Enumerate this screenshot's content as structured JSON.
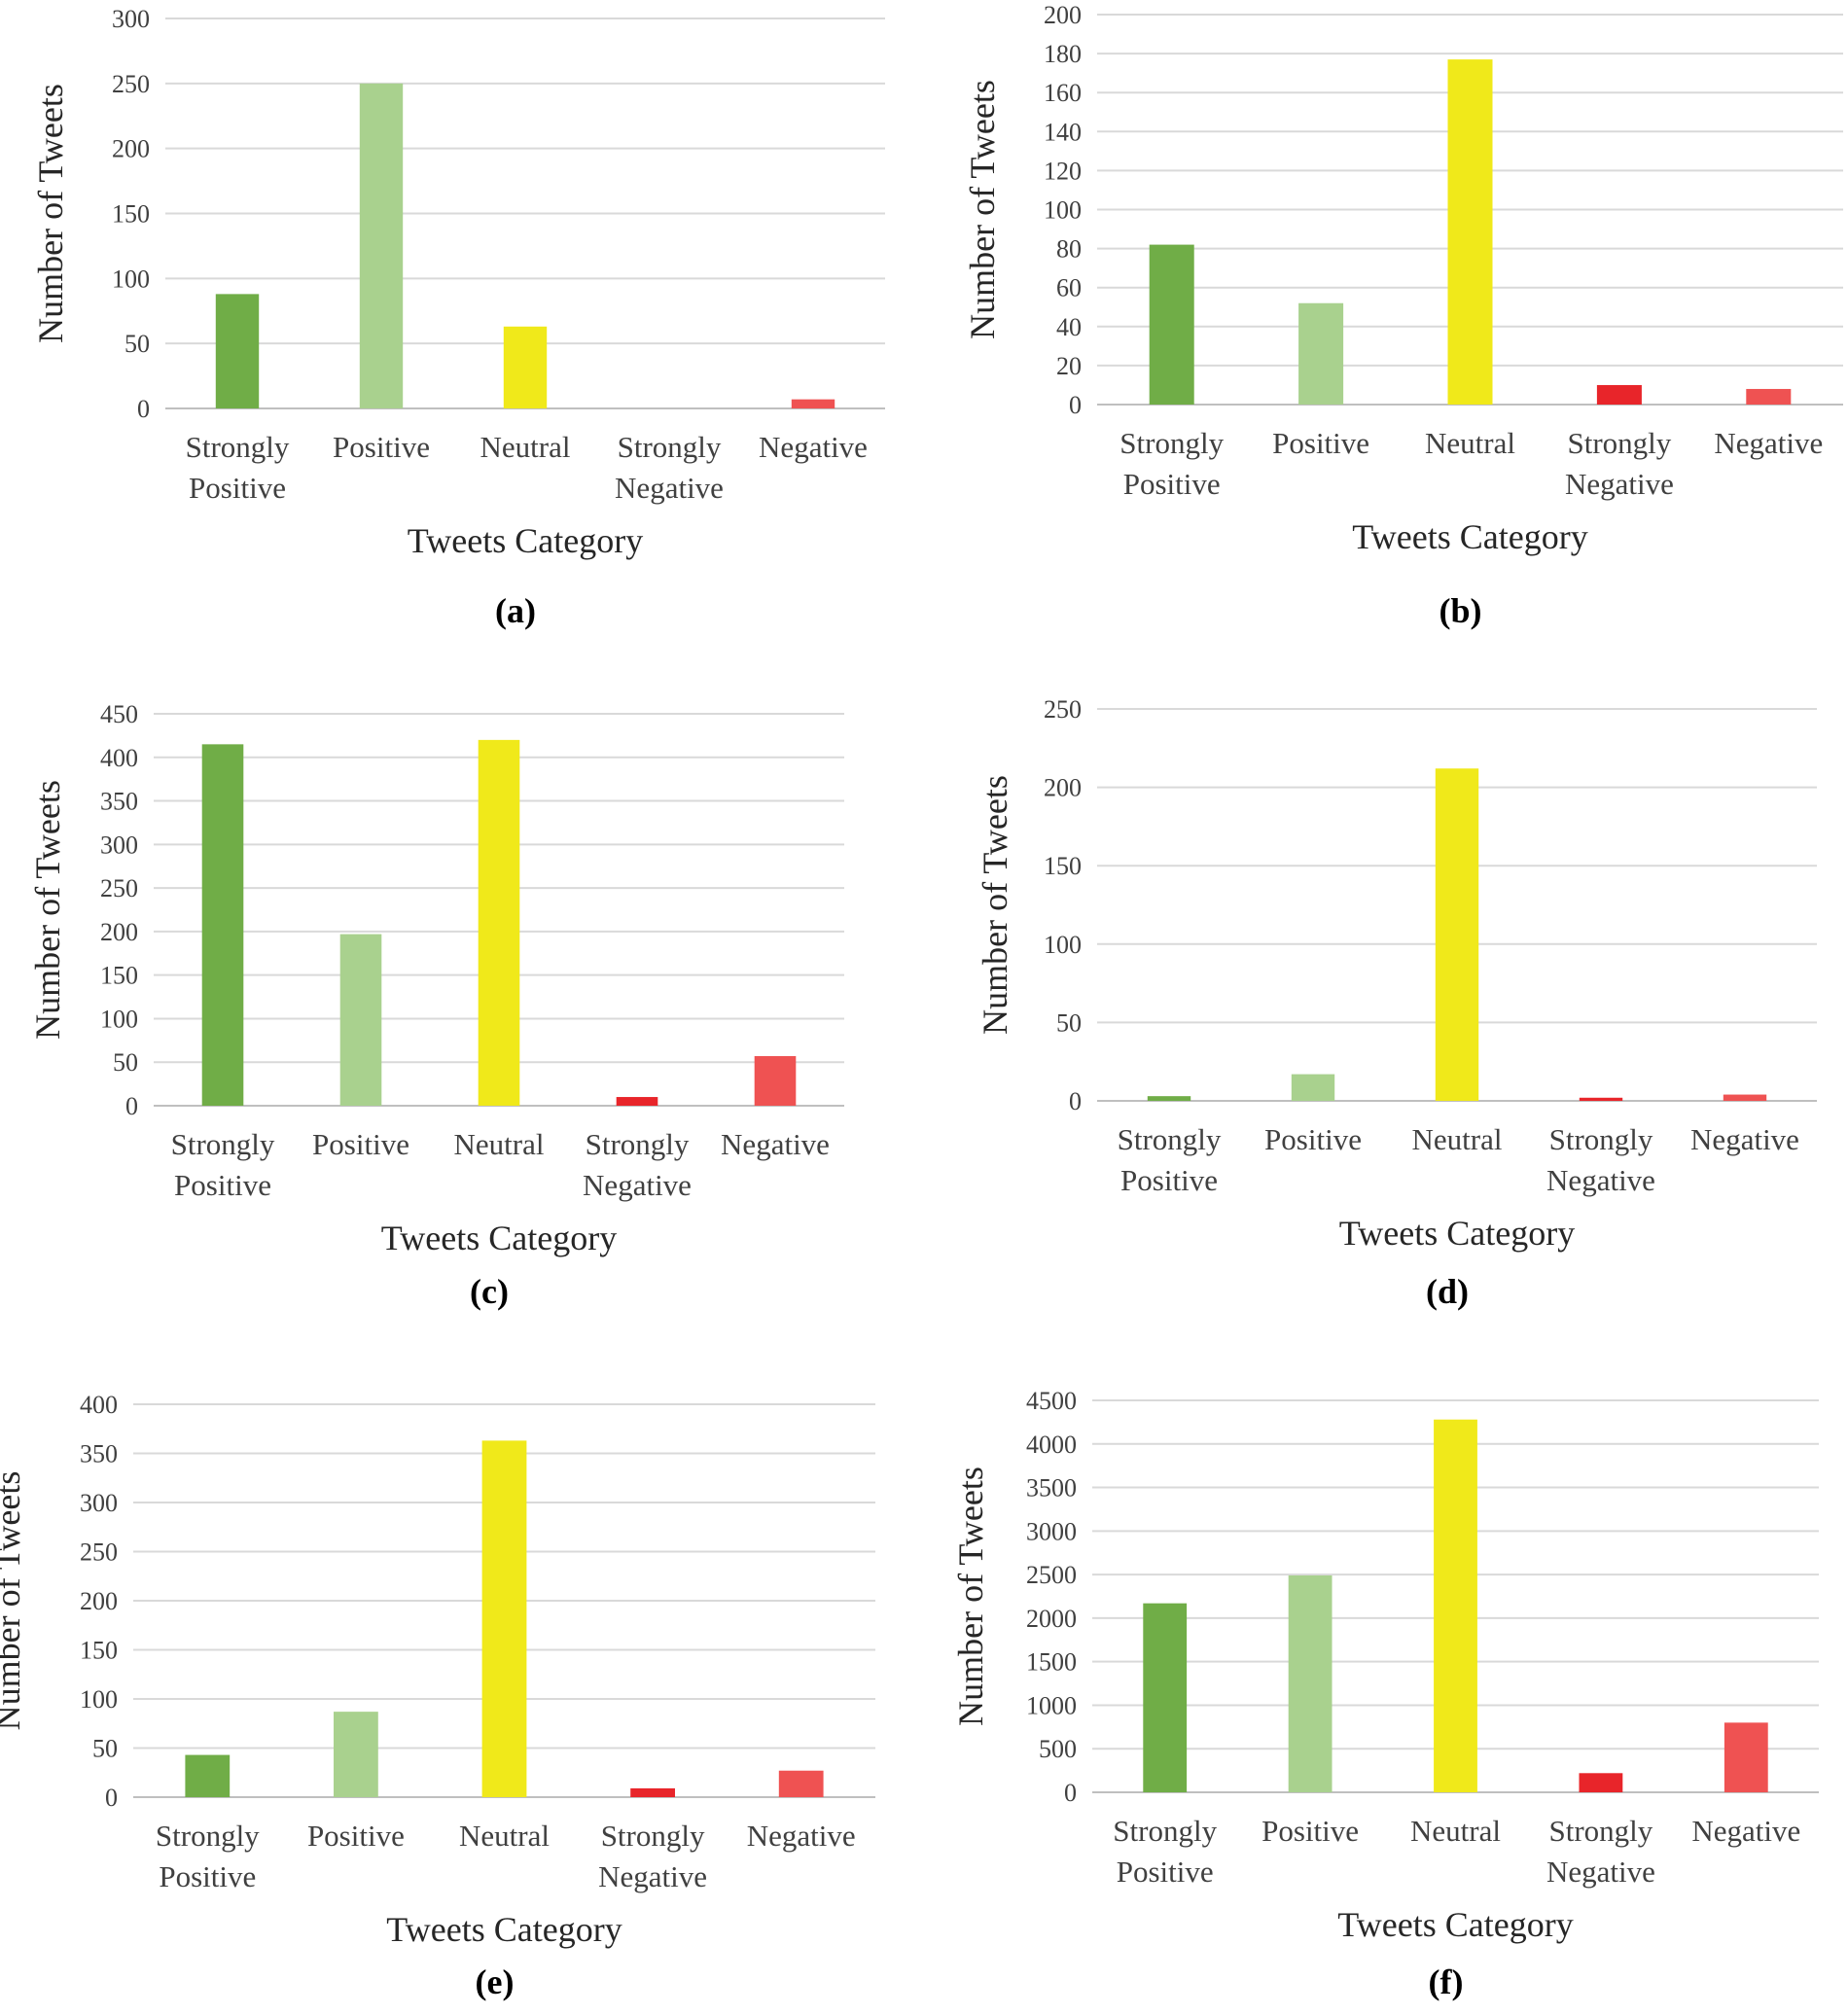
{
  "chart_data": [
    {
      "type": "bar",
      "panel_label": "(a)",
      "categories": [
        [
          "Strongly",
          "Positive"
        ],
        [
          "Positive"
        ],
        [
          "Neutral"
        ],
        [
          "Strongly",
          "Negative"
        ],
        [
          "Negative"
        ]
      ],
      "values": [
        88,
        250,
        63,
        0,
        7
      ],
      "colors": [
        "#70ad47",
        "#a9d18e",
        "#f0e91a",
        "#e8252a",
        "#ef5252"
      ],
      "xlabel": "Tweets Category",
      "ylabel": "Number of Tweets",
      "ylim": [
        0,
        300
      ],
      "yticks": [
        0,
        50,
        100,
        150,
        200,
        250,
        300
      ],
      "grid": true
    },
    {
      "type": "bar",
      "panel_label": "(b)",
      "categories": [
        [
          "Strongly",
          "Positive"
        ],
        [
          "Positive"
        ],
        [
          "Neutral"
        ],
        [
          "Strongly",
          "Negative"
        ],
        [
          "Negative"
        ]
      ],
      "values": [
        82,
        52,
        177,
        10,
        8
      ],
      "colors": [
        "#70ad47",
        "#a9d18e",
        "#f0e91a",
        "#e8252a",
        "#ef5252"
      ],
      "xlabel": "Tweets Category",
      "ylabel": "Number of Tweets",
      "ylim": [
        0,
        200
      ],
      "yticks": [
        0,
        20,
        40,
        60,
        80,
        100,
        120,
        140,
        160,
        180,
        200
      ],
      "grid": true
    },
    {
      "type": "bar",
      "panel_label": "(c)",
      "categories": [
        [
          "Strongly",
          "Positive"
        ],
        [
          "Positive"
        ],
        [
          "Neutral"
        ],
        [
          "Strongly",
          "Negative"
        ],
        [
          "Negative"
        ]
      ],
      "values": [
        415,
        197,
        420,
        10,
        57
      ],
      "colors": [
        "#70ad47",
        "#a9d18e",
        "#f0e91a",
        "#e8252a",
        "#ef5252"
      ],
      "xlabel": "Tweets Category",
      "ylabel": "Number of Tweets",
      "ylim": [
        0,
        450
      ],
      "yticks": [
        0,
        50,
        100,
        150,
        200,
        250,
        300,
        350,
        400,
        450
      ],
      "grid": true
    },
    {
      "type": "bar",
      "panel_label": "(d)",
      "categories": [
        [
          "Strongly",
          "Positive"
        ],
        [
          "Positive"
        ],
        [
          "Neutral"
        ],
        [
          "Strongly",
          "Negative"
        ],
        [
          "Negative"
        ]
      ],
      "values": [
        3,
        17,
        212,
        2,
        4
      ],
      "colors": [
        "#70ad47",
        "#a9d18e",
        "#f0e91a",
        "#e8252a",
        "#ef5252"
      ],
      "xlabel": "Tweets Category",
      "ylabel": "Number of Tweets",
      "ylim": [
        0,
        250
      ],
      "yticks": [
        0,
        50,
        100,
        150,
        200,
        250
      ],
      "grid": true
    },
    {
      "type": "bar",
      "panel_label": "(e)",
      "categories": [
        [
          "Strongly",
          "Positive"
        ],
        [
          "Positive"
        ],
        [
          "Neutral"
        ],
        [
          "Strongly",
          "Negative"
        ],
        [
          "Negative"
        ]
      ],
      "values": [
        43,
        87,
        363,
        9,
        27
      ],
      "colors": [
        "#70ad47",
        "#a9d18e",
        "#f0e91a",
        "#e8252a",
        "#ef5252"
      ],
      "xlabel": "Tweets Category",
      "ylabel": "Number of Tweets",
      "ylim": [
        0,
        400
      ],
      "yticks": [
        0,
        50,
        100,
        150,
        200,
        250,
        300,
        350,
        400
      ],
      "grid": true
    },
    {
      "type": "bar",
      "panel_label": "(f)",
      "categories": [
        [
          "Strongly",
          "Positive"
        ],
        [
          "Positive"
        ],
        [
          "Neutral"
        ],
        [
          "Strongly",
          "Negative"
        ],
        [
          "Negative"
        ]
      ],
      "values": [
        2170,
        2490,
        4280,
        220,
        800
      ],
      "colors": [
        "#70ad47",
        "#a9d18e",
        "#f0e91a",
        "#e8252a",
        "#ef5252"
      ],
      "xlabel": "Tweets Category",
      "ylabel": "Number of Tweets",
      "ylim": [
        0,
        4500
      ],
      "yticks": [
        0,
        500,
        1000,
        1500,
        2000,
        2500,
        3000,
        3500,
        4000,
        4500
      ],
      "grid": true
    }
  ]
}
